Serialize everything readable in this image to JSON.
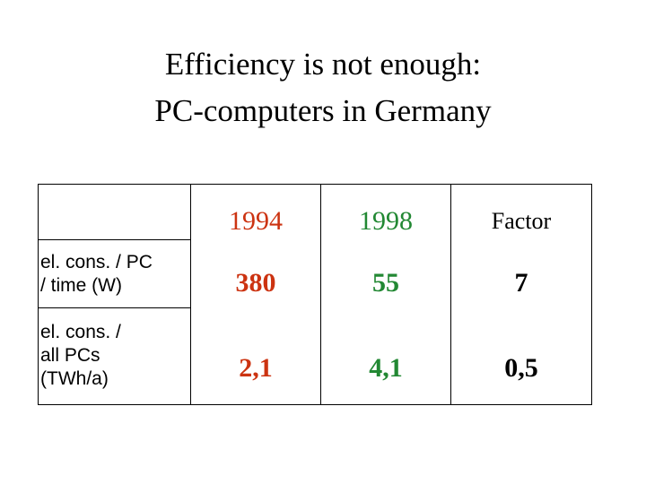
{
  "title": {
    "lines": [
      "Efficiency is not enough:",
      "PC-computers in Germany"
    ]
  },
  "table": {
    "header": [
      "1994",
      "1998",
      "Factor"
    ],
    "rows": [
      {
        "label_lines": [
          "el. cons. / PC",
          "/ time (W)"
        ],
        "cells": [
          "380",
          "55",
          "7"
        ]
      },
      {
        "label_lines": [
          "el. cons. /",
          "all PCs",
          "(TWh/a)"
        ],
        "cells": [
          "2,1",
          "4,1",
          "0,5"
        ]
      }
    ]
  }
}
